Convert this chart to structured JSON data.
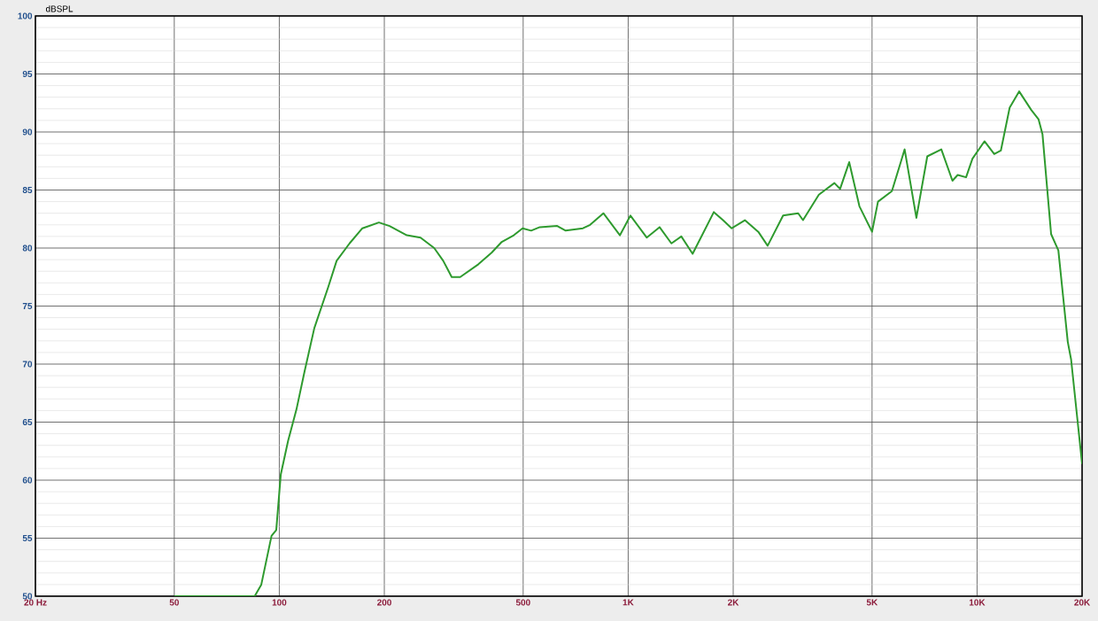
{
  "chart_data": {
    "type": "line",
    "ylabel": "dBSPL",
    "log": "x",
    "grid": true,
    "xlim": [
      20,
      20000
    ],
    "ylim": [
      50,
      100
    ],
    "xticks": [
      {
        "value": 20,
        "label": "20 Hz"
      },
      50,
      100,
      200,
      500,
      {
        "value": 1000,
        "label": "1K"
      },
      {
        "value": 2000,
        "label": "2K"
      },
      {
        "value": 5000,
        "label": "5K"
      },
      {
        "value": 10000,
        "label": "10K"
      },
      {
        "value": 20000,
        "label": "20K"
      }
    ],
    "yticks": [
      50,
      55,
      60,
      65,
      70,
      75,
      80,
      85,
      90,
      95,
      100
    ],
    "x": [
      50,
      85,
      88.8,
      95,
      98,
      101,
      106,
      112,
      118,
      126,
      138,
      146,
      159,
      173,
      193,
      207,
      232,
      254,
      278,
      295,
      312,
      330,
      372,
      406,
      433,
      470,
      498,
      527,
      558,
      626,
      662,
      742,
      778,
      849,
      947,
      1015,
      1130,
      1230,
      1330,
      1420,
      1530,
      1760,
      1870,
      1980,
      2160,
      2360,
      2510,
      2780,
      3070,
      3170,
      3520,
      3900,
      4050,
      4300,
      4600,
      5000,
      5200,
      5700,
      6200,
      6700,
      7200,
      7900,
      8500,
      8800,
      9300,
      9700,
      10500,
      11200,
      11700,
      12400,
      13200,
      14300,
      15000,
      15400,
      16300,
      17100,
      18200,
      18600,
      20000
    ],
    "series": [
      {
        "color": "#2e9a2e",
        "line_style": "solid",
        "values": [
          50,
          50,
          51,
          55.2,
          55.7,
          60.5,
          63.4,
          66.1,
          69.3,
          73.1,
          76.6,
          78.9,
          80.4,
          81.7,
          82.2,
          81.9,
          81.1,
          80.9,
          80,
          78.9,
          77.5,
          77.5,
          78.6,
          79.6,
          80.5,
          81.1,
          81.7,
          81.5,
          81.8,
          81.9,
          81.5,
          81.7,
          82,
          83,
          81.1,
          82.8,
          80.9,
          81.8,
          80.4,
          81,
          79.5,
          83.1,
          82.4,
          81.7,
          82.4,
          81.4,
          80.2,
          82.8,
          83,
          82.4,
          84.6,
          85.6,
          85.1,
          87.4,
          83.6,
          81.4,
          84,
          84.9,
          88.5,
          82.6,
          87.9,
          88.5,
          85.8,
          86.3,
          86.1,
          87.7,
          89.2,
          88.1,
          88.4,
          92.1,
          93.5,
          91.9,
          91.1,
          89.8,
          81.2,
          79.8,
          71.9,
          70.4,
          61.4
        ]
      }
    ]
  }
}
